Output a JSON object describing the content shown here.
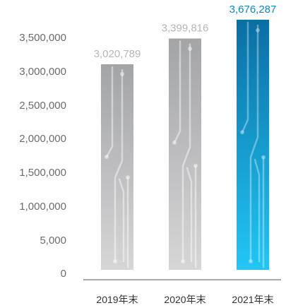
{
  "chart_data": {
    "type": "bar",
    "title": "",
    "xlabel": "",
    "ylabel": "",
    "categories": [
      "2019年末",
      "2020年末",
      "2021年末"
    ],
    "values": [
      3020789,
      3399816,
      3676287
    ],
    "data_labels": [
      "3,020,789",
      "3,399,816",
      "3,676,287"
    ],
    "y_tick_labels": [
      "0",
      "5,000",
      "1,000,000",
      "1,500,000",
      "2,000,000",
      "2,500,000",
      "3,000,000",
      "3,500,000"
    ],
    "ylim": [
      0,
      3500000
    ],
    "grid": false,
    "legend": "none",
    "highlight_index": 2,
    "colors": {
      "bar_top": "#a3a4a6",
      "bar_bottom": "#d6d6d7",
      "highlight_top": "#0a6ea3",
      "highlight_bottom": "#22c6f5",
      "label": "#b5b5b5",
      "highlight_label": "#1187b9",
      "axis": "#555555"
    }
  }
}
